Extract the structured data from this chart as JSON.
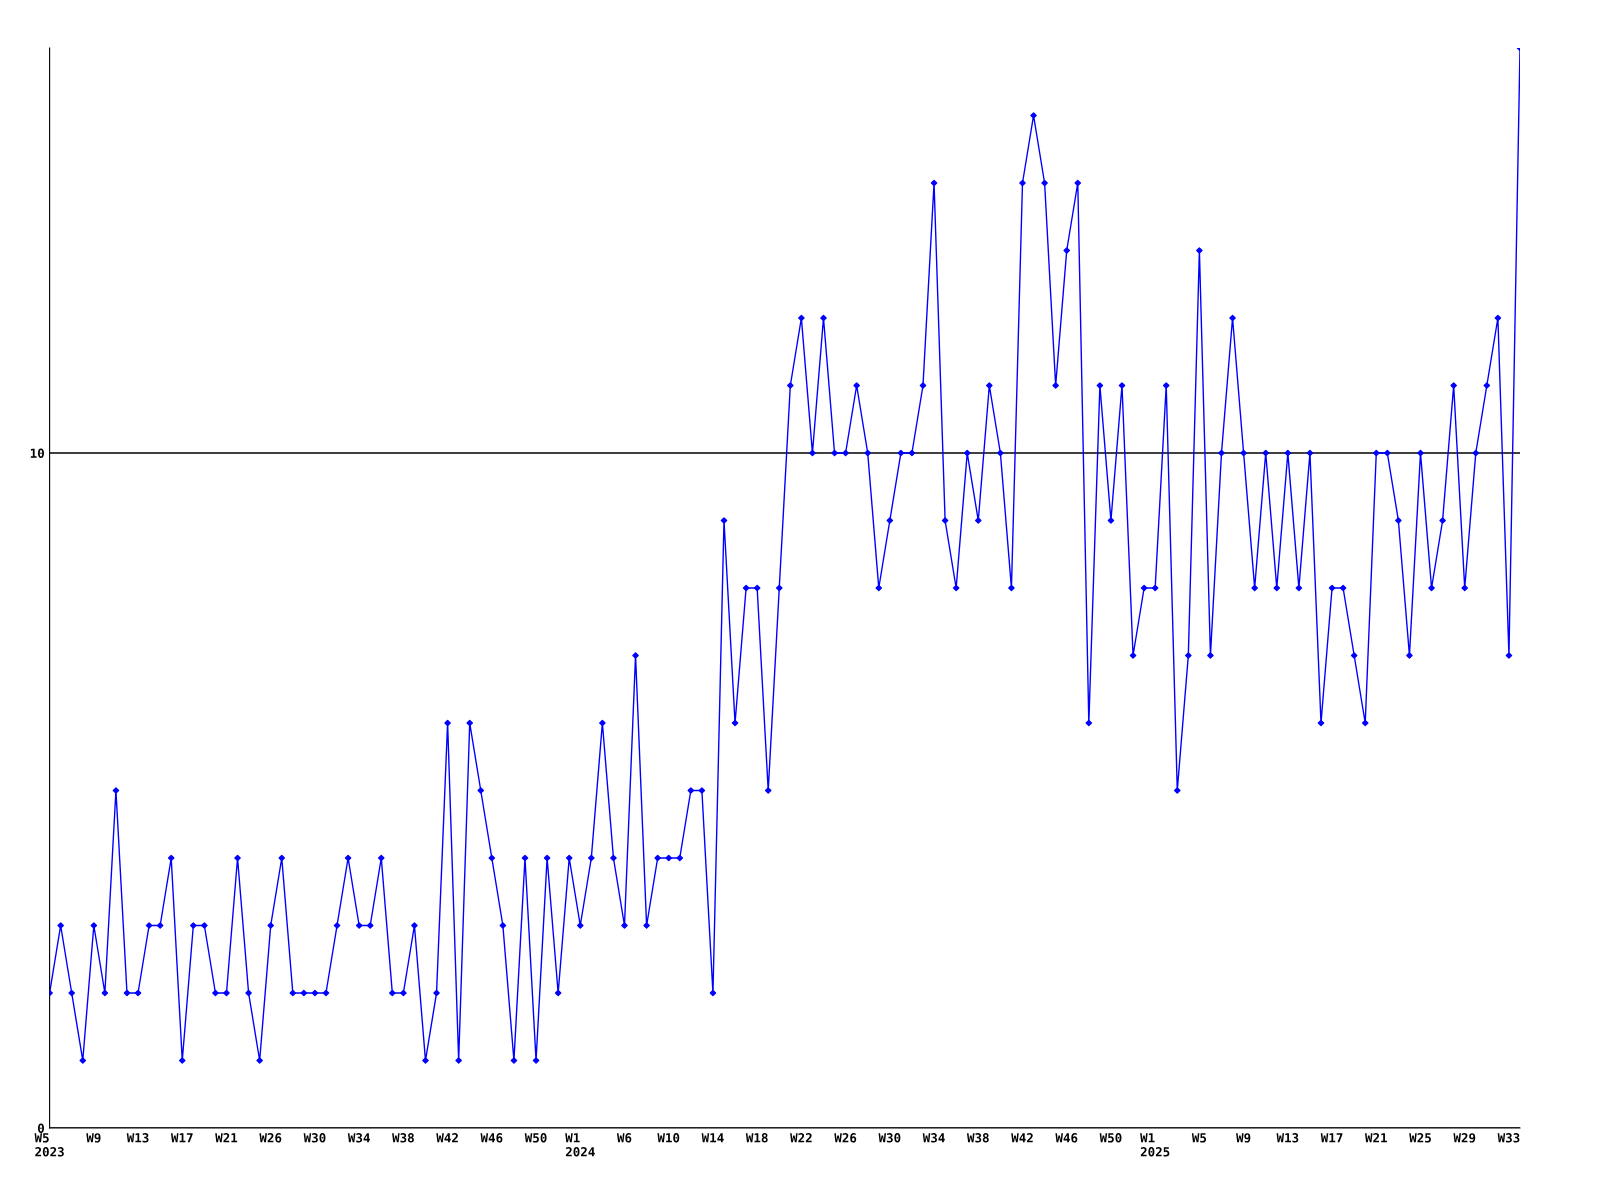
{
  "chart_data": {
    "type": "line",
    "categories": [
      "W5\n2023",
      null,
      null,
      null,
      "W9",
      null,
      null,
      null,
      "W13",
      null,
      null,
      null,
      "W17",
      null,
      null,
      null,
      "W21",
      null,
      null,
      null,
      "W26",
      null,
      null,
      null,
      "W30",
      null,
      null,
      null,
      "W34",
      null,
      null,
      null,
      "W38",
      null,
      null,
      null,
      "W42",
      null,
      null,
      null,
      "W46",
      null,
      null,
      null,
      "W50",
      null,
      null,
      null,
      "W1\n2024",
      null,
      null,
      null,
      "W6",
      null,
      null,
      null,
      "W10",
      null,
      null,
      null,
      "W14",
      null,
      null,
      null,
      "W18",
      null,
      null,
      null,
      "W22",
      null,
      null,
      null,
      "W26",
      null,
      null,
      null,
      "W30",
      null,
      null,
      null,
      "W34",
      null,
      null,
      null,
      "W38",
      null,
      null,
      null,
      "W42",
      null,
      null,
      null,
      "W46",
      null,
      null,
      null,
      "W50",
      null,
      null,
      null,
      "W1\n2025",
      null,
      null,
      null,
      "W5",
      null,
      null,
      null,
      "W9",
      null,
      null,
      null,
      "W13",
      null,
      null,
      null,
      "W17",
      null,
      null,
      null,
      "W21",
      null,
      null,
      null,
      "W25",
      null,
      null,
      null,
      "W29",
      null,
      null,
      null,
      "W33",
      null
    ],
    "series": [
      {
        "color": "#0000ff",
        "values": [
          2,
          3,
          2,
          1,
          3,
          2,
          5,
          2,
          2,
          3,
          3,
          4,
          1,
          3,
          3,
          2,
          2,
          4,
          2,
          1,
          3,
          4,
          2,
          2,
          2,
          2,
          3,
          4,
          3,
          3,
          4,
          2,
          2,
          3,
          1,
          2,
          6,
          1,
          6,
          5,
          4,
          3,
          1,
          4,
          1,
          4,
          2,
          4,
          3,
          4,
          6,
          4,
          3,
          7,
          3,
          4,
          4,
          4,
          5,
          5,
          2,
          9,
          6,
          8,
          8,
          5,
          8,
          11,
          12,
          10,
          12,
          10,
          10,
          11,
          10,
          8,
          9,
          10,
          10,
          11,
          14,
          9,
          8,
          10,
          9,
          11,
          10,
          8,
          14,
          15,
          14,
          11,
          13,
          14,
          6,
          11,
          9,
          11,
          7,
          8,
          8,
          11,
          5,
          7,
          13,
          7,
          10,
          12,
          10,
          8,
          10,
          8,
          10,
          8,
          10,
          6,
          8,
          8,
          7,
          6,
          10,
          10,
          9,
          7,
          10,
          8,
          9,
          11,
          8,
          10,
          11,
          12,
          7,
          16
        ]
      }
    ],
    "ylim": [
      0,
      16
    ],
    "yticks": [
      0,
      10
    ],
    "grid": "y",
    "marker": "diamond",
    "line_style": "solid",
    "legend": false
  }
}
